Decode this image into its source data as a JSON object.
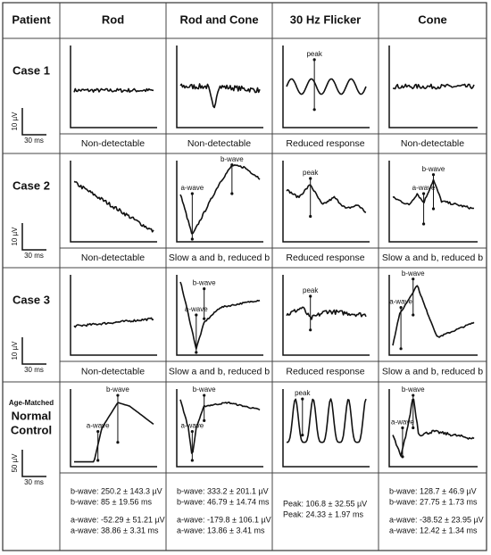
{
  "header": [
    "Patient",
    "Rod",
    "Rod and Cone",
    "30 Hz Flicker",
    "Cone"
  ],
  "rows": [
    {
      "patient": [
        "Case 1"
      ],
      "scale": {
        "amplitude": "10 µV",
        "time": "30 ms"
      },
      "results": [
        "Non-detectable",
        "Non-detectable",
        "Reduced response",
        "Non-detectable"
      ],
      "annotations": [
        [],
        [],
        [
          "peak"
        ],
        []
      ]
    },
    {
      "patient": [
        "Case 2"
      ],
      "scale": {
        "amplitude": "10 µV",
        "time": "30 ms"
      },
      "results": [
        "Non-detectable",
        "Slow a and b, reduced b",
        "Reduced response",
        "Slow a and b, reduced b"
      ],
      "annotations": [
        [],
        [
          "a-wave",
          "b-wave"
        ],
        [
          "peak"
        ],
        [
          "a-wave",
          "b-wave"
        ]
      ]
    },
    {
      "patient": [
        "Case 3"
      ],
      "scale": {
        "amplitude": "10 µV",
        "time": "30 ms"
      },
      "results": [
        "Non-detectable",
        "Slow a and b, reduced b",
        "Reduced response",
        "Slow a and b, reduced b"
      ],
      "annotations": [
        [],
        [
          "a-wave",
          "b-wave"
        ],
        [
          "peak"
        ],
        [
          "a-wave",
          "b-wave"
        ]
      ]
    },
    {
      "patient": [
        "Age-Matched",
        "Normal",
        "Control"
      ],
      "scale": {
        "amplitude": "50 µV",
        "time": "30 ms"
      },
      "results": [
        [
          "b-wave: 250.2 ± 143.3 µV",
          "b-wave:  85  ± 19.56  ms",
          "a-wave: -52.29 ± 51.21  µV",
          "a-wave: 38.86 ± 3.31 ms"
        ],
        [
          "b-wave: 333.2 ± 201.1 µV",
          "b-wave: 46.79 ± 14.74  ms",
          "a-wave: -179.8 ± 106.1 µV",
          "a-wave: 13.86 ± 3.41 ms"
        ],
        [
          "Peak: 106.8 ± 32.55 µV",
          "Peak: 24.33 ± 1.97 ms"
        ],
        [
          "b-wave: 128.7 ± 46.9 µV",
          "b-wave: 27.75 ± 1.73 ms",
          "a-wave: -38.52 ± 23.95 µV",
          "a-wave: 12.42 ± 1.34 ms"
        ]
      ],
      "annotations": [
        [
          "a-wave",
          "b-wave"
        ],
        [
          "a-wave",
          "b-wave"
        ],
        [
          "peak"
        ],
        [
          "a-wave",
          "b-wave"
        ]
      ]
    }
  ]
}
